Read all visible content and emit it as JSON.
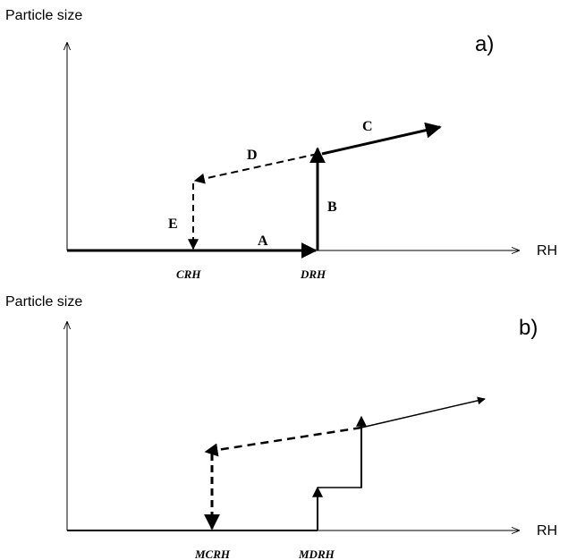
{
  "panel_a": {
    "y_axis_label": "Particle size",
    "x_axis_label": "RH",
    "panel_label": "a)",
    "path_labels": {
      "A": "A",
      "B": "B",
      "C": "C",
      "D": "D",
      "E": "E"
    },
    "x_ticks": {
      "crh": "CRH",
      "drh": "DRH"
    }
  },
  "panel_b": {
    "y_axis_label": "Particle size",
    "x_axis_label": "RH",
    "panel_label": "b)",
    "x_ticks": {
      "mcrh": "MCRH",
      "mdrh": "MDRH"
    }
  }
}
